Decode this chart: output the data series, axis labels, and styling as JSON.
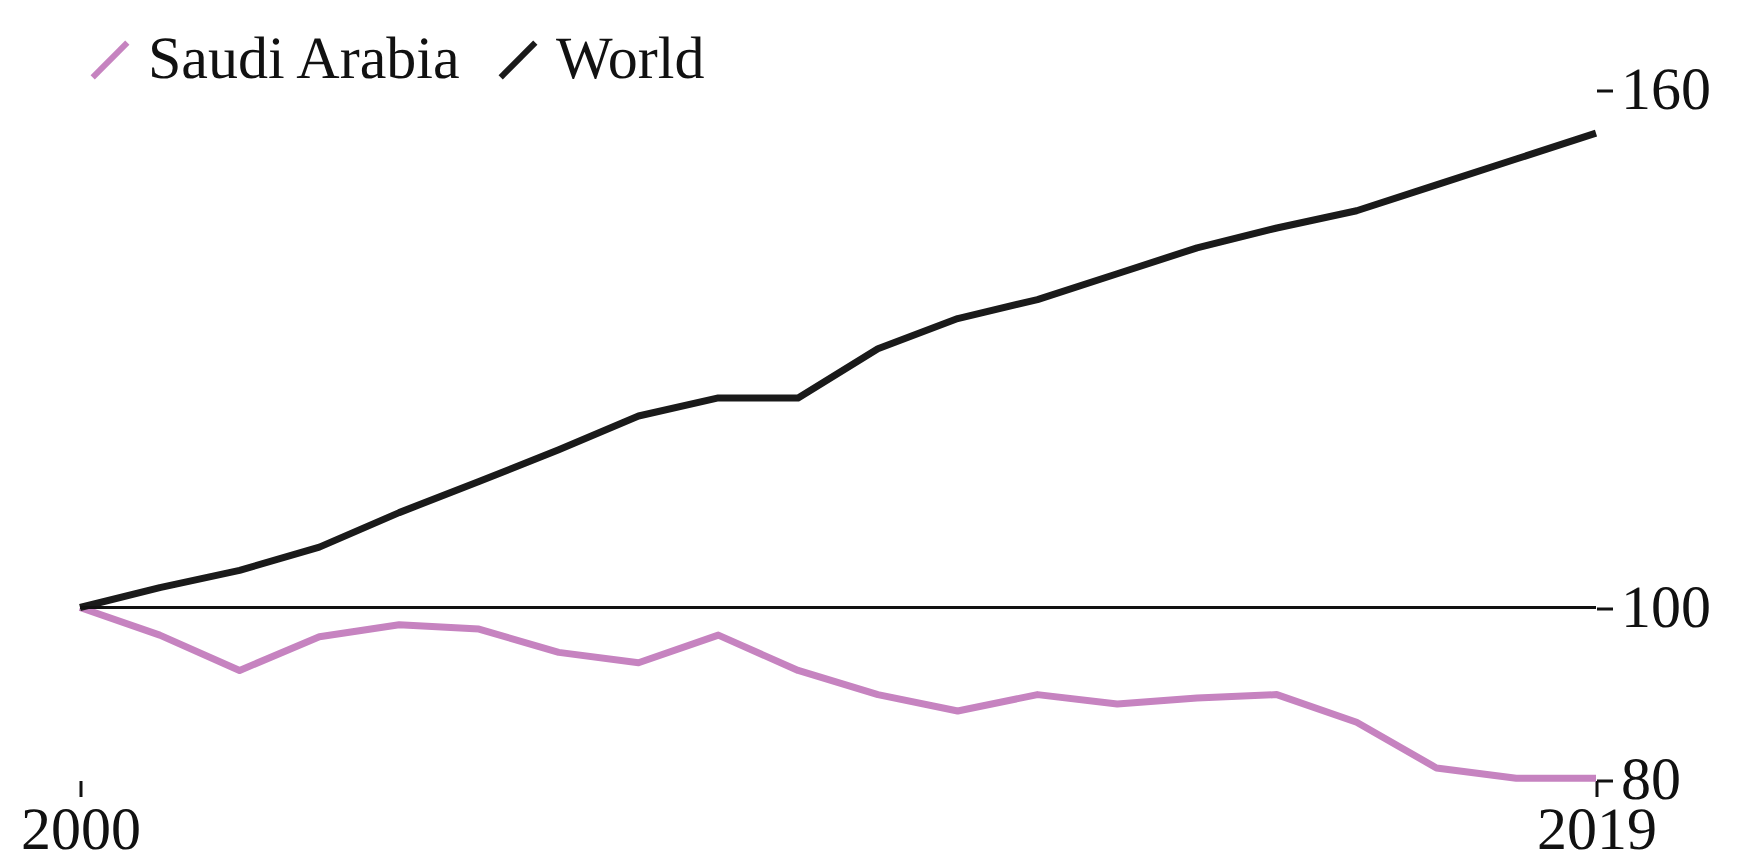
{
  "chart_data": {
    "type": "line",
    "x": [
      2000,
      2001,
      2002,
      2003,
      2004,
      2005,
      2006,
      2007,
      2008,
      2009,
      2010,
      2011,
      2012,
      2013,
      2014,
      2015,
      2016,
      2017,
      2018,
      2019
    ],
    "xlim": [
      2000,
      2019
    ],
    "xticks": [
      2000,
      2019
    ],
    "ylim": [
      80,
      160
    ],
    "yticks": [
      80,
      100,
      160
    ],
    "legend": "top left",
    "series": [
      {
        "name": "Saudi Arabia",
        "color": "#c683c0",
        "values": [
          100,
          96.8,
          92.7,
          96.6,
          98,
          97.5,
          94.8,
          93.6,
          96.8,
          92.7,
          89.9,
          88,
          89.9,
          88.8,
          89.5,
          89.9,
          86.7,
          81.4,
          80.2,
          80.2
        ]
      },
      {
        "name": "World",
        "color": "#1a1a1a",
        "values": [
          100,
          102.3,
          104.3,
          107,
          111,
          114.6,
          118.3,
          122.2,
          124.3,
          124.3,
          130,
          133.5,
          135.7,
          138.7,
          141.7,
          144,
          146,
          149,
          152,
          155
        ]
      }
    ],
    "ref_lines": [
      {
        "axis": "y",
        "value": 100
      }
    ]
  }
}
